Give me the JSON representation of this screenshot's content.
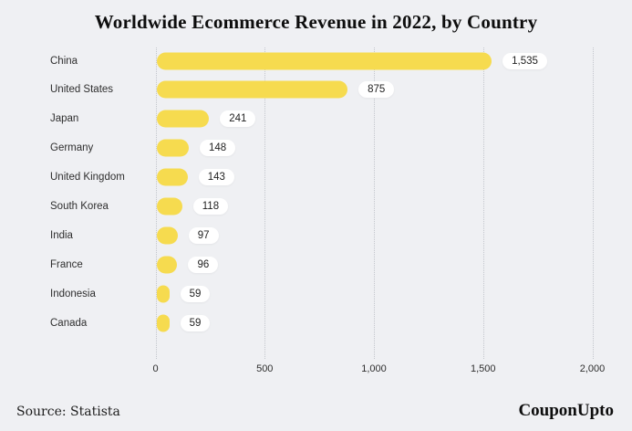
{
  "title": "Worldwide Ecommerce Revenue in 2022, by Country",
  "footer": {
    "source": "Source: Statista",
    "brand": "CouponUpto"
  },
  "colors": {
    "background": "#eff0f3",
    "bar": "#f6db4f",
    "badge_bg": "#ffffff",
    "gridline": "#c3c6cc",
    "label_text": "#2e2e2e",
    "title_text": "#0d0d0d"
  },
  "chart_data": {
    "type": "bar",
    "orientation": "horizontal",
    "title": "Worldwide Ecommerce Revenue in 2022, by Country",
    "categories": [
      "China",
      "United States",
      "Japan",
      "Germany",
      "United Kingdom",
      "South Korea",
      "India",
      "France",
      "Indonesia",
      "Canada"
    ],
    "values": [
      1535,
      875,
      241,
      148,
      143,
      118,
      97,
      96,
      59,
      59
    ],
    "value_labels": [
      "1,535",
      "875",
      "241",
      "148",
      "143",
      "118",
      "97",
      "96",
      "59",
      "59"
    ],
    "xlabel": "",
    "ylabel": "",
    "xlim": [
      0,
      2000
    ],
    "xticks": [
      0,
      500,
      1000,
      1500,
      2000
    ],
    "xtick_labels": [
      "0",
      "500",
      "1,000",
      "1,500",
      "2,000"
    ],
    "grid": "vertical-dotted",
    "legend": "none"
  }
}
